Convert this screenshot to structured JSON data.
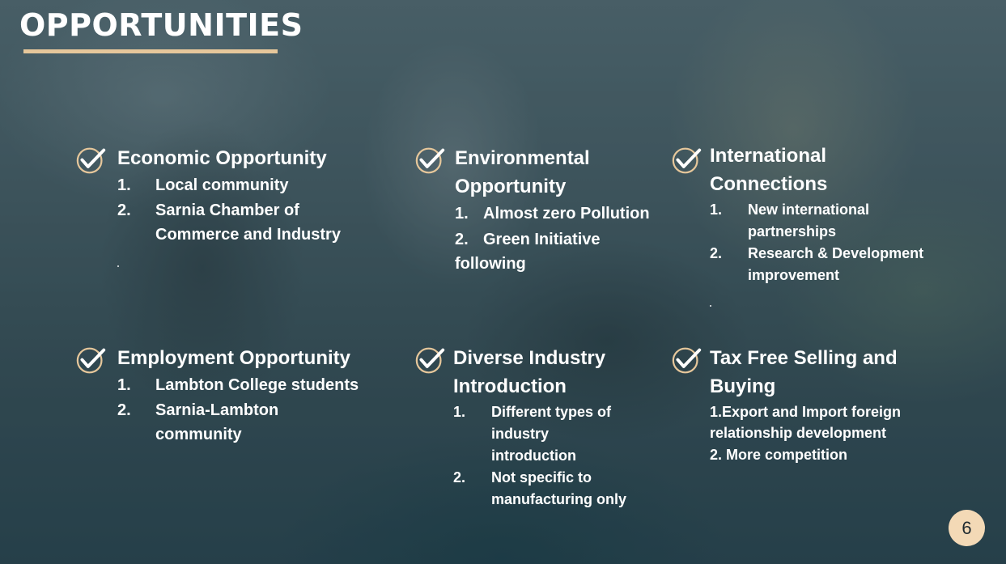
{
  "slide": {
    "title": "OPPORTUNITIES",
    "page_number": "6",
    "accent_color": "#e6c79b",
    "badge_color": "#f3d9b6",
    "icon": "check-circle-icon"
  },
  "items": [
    {
      "heading": "Economic Opportunity",
      "points": [
        {
          "num": "1.",
          "text": "Local community"
        },
        {
          "num": "2.",
          "text": "Sarnia Chamber of Commerce and Industry"
        }
      ]
    },
    {
      "heading": "Environmental Opportunity",
      "points": [
        {
          "num": "1.",
          "text": "Almost zero Pollution"
        },
        {
          "num": "2.",
          "text": "Green Initiative following"
        }
      ]
    },
    {
      "heading": "International Connections",
      "points": [
        {
          "num": "1.",
          "text": "New international partnerships"
        },
        {
          "num": "2.",
          "text": "Research & Development improvement"
        }
      ]
    },
    {
      "heading": "Employment Opportunity",
      "points": [
        {
          "num": "1.",
          "text": "Lambton College students"
        },
        {
          "num": "2.",
          "text": "Sarnia-Lambton community"
        }
      ]
    },
    {
      "heading": "Diverse Industry Introduction",
      "points": [
        {
          "num": "1.",
          "text": "Different types of industry introduction"
        },
        {
          "num": "2.",
          "text": "Not specific to manufacturing only"
        }
      ]
    },
    {
      "heading": "Tax Free Selling and Buying",
      "points": [
        {
          "text": "1.Export and Import foreign relationship development"
        },
        {
          "text": "2. More competition"
        }
      ]
    }
  ]
}
